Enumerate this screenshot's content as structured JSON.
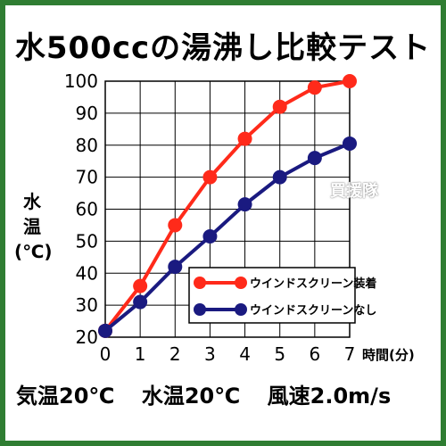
{
  "title": "水500ccの湯沸し比較テスト",
  "ylabel_lines": [
    "水",
    "温",
    "(℃)"
  ],
  "conditions": [
    "気温20℃",
    "水温20℃",
    "風速2.0m/s"
  ],
  "watermark": "買援隊",
  "colors": {
    "frame": "#2f7d32",
    "series1": "#ff2a1a",
    "series2": "#1a1a80"
  },
  "chart_data": {
    "type": "line",
    "title": "水500ccの湯沸し比較テスト",
    "xlabel": "時間(分)",
    "ylabel": "水温(℃)",
    "x": [
      0,
      1,
      2,
      3,
      4,
      5,
      6,
      7
    ],
    "xlim": [
      0,
      7
    ],
    "ylim": [
      20,
      100
    ],
    "yticks": [
      20,
      30,
      40,
      50,
      60,
      70,
      80,
      90,
      100
    ],
    "grid": true,
    "legend": "bottom-right",
    "series": [
      {
        "name": "ウインドスクリーン装着",
        "color": "#ff2a1a",
        "values": [
          22,
          36,
          55,
          70,
          82,
          92,
          98,
          100
        ]
      },
      {
        "name": "ウインドスクリーンなし",
        "color": "#1a1a80",
        "values": [
          22,
          31,
          42,
          51.5,
          61.5,
          70,
          76,
          80.5
        ]
      }
    ]
  }
}
